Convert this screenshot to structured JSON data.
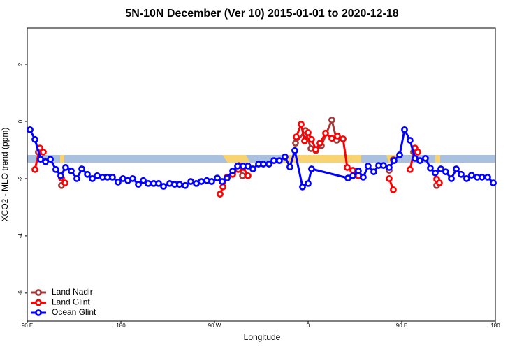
{
  "chart_data": {
    "type": "line",
    "title": "5N-10N December (Ver 10)   2015-01-01 to 2020-12-18",
    "xlabel": "Longitude",
    "ylabel": "XCO2 - MLO trend (ppm)",
    "xlim": [
      90,
      540
    ],
    "ylim": [
      -6.98,
      3.27
    ],
    "xticks": [
      {
        "value": 90,
        "label": "90 E"
      },
      180,
      {
        "value": 270,
        "label": "90 W"
      },
      {
        "value": 360,
        "label": "0"
      },
      {
        "value": 450,
        "label": "90 E"
      },
      {
        "value": 540,
        "label": "180"
      }
    ],
    "yticks": [
      -6,
      -4,
      -2,
      0,
      2
    ],
    "legend": "bottom-left",
    "series": [
      {
        "name": "Land Nadir",
        "color": "#a33a3a",
        "x": [
          100.7,
          null,
          122.9,
          null,
          293.5,
          296.9,
          null,
          347.9,
          357.3,
          362.7,
          367.4,
          372.7,
          382.8,
          387.5,
          null,
          437.9,
          441.9,
          null,
          461.4,
          null,
          483.6
        ],
        "values": [
          -1.07,
          null,
          -2.24,
          null,
          -1.54,
          -1.9,
          null,
          -0.76,
          -0.32,
          -0.95,
          -1.02,
          -0.85,
          0.05,
          -0.66,
          null,
          -1.71,
          -1.34,
          null,
          -1.07,
          null,
          -2.24
        ]
      },
      {
        "name": "Land Glint",
        "color": "#ff0000",
        "x": [
          97.4,
          102.1,
          105.4,
          null,
          122.9,
          126.3,
          null,
          275.4,
          278.1,
          282.1,
          287.5,
          292.8,
          297.5,
          302.2,
          null,
          348.6,
          353.3,
          356.6,
          360.0,
          363.3,
          367.4,
          371.4,
          376.8,
          382.8,
          388.2,
          393.6,
          397.6,
          403.0,
          408.3,
          null,
          437.9,
          441.9,
          null,
          458.0,
          462.7,
          465.4,
          null,
          483.6,
          486.2
        ],
        "values": [
          -1.68,
          -0.93,
          -1.07,
          null,
          -1.98,
          -2.15,
          null,
          -2.54,
          -2.29,
          -1.95,
          -1.85,
          -1.68,
          -1.61,
          -1.9,
          null,
          -0.54,
          -0.1,
          -0.68,
          -0.39,
          -0.63,
          -0.98,
          -0.76,
          -0.41,
          -0.59,
          -0.51,
          -0.61,
          -1.61,
          -1.71,
          -1.9,
          null,
          -2.0,
          -2.39,
          null,
          -1.68,
          -0.93,
          -1.07,
          null,
          -2.02,
          -2.15
        ]
      },
      {
        "name": "Ocean Glint",
        "color": "#0000ff",
        "x": [
          92.7,
          97.4,
          102.8,
          107.5,
          112.2,
          117.5,
          122.2,
          126.9,
          132.3,
          137.7,
          142.4,
          147.8,
          152.5,
          157.2,
          162.5,
          167.2,
          171.9,
          177.3,
          182.0,
          186.7,
          191.4,
          196.8,
          201.5,
          206.2,
          211.6,
          216.3,
          221.0,
          227.0,
          231.7,
          236.4,
          241.8,
          247.2,
          252.5,
          257.2,
          262.6,
          267.3,
          272.7,
          277.4,
          282.1,
          287.5,
          292.2,
          297.5,
          302.2,
          306.9,
          312.3,
          317.0,
          322.4,
          327.1,
          332.4,
          337.8,
          342.5,
          347.2,
          354.6,
          360.0,
          363.3,
          398.3,
          403.0,
          408.3,
          413.0,
          417.7,
          423.1,
          427.8,
          432.5,
          437.9,
          442.6,
          448.0,
          452.7,
          458.0,
          462.7,
          467.4,
          472.8,
          477.5,
          482.2,
          487.6,
          492.3,
          497.7,
          502.4,
          507.1,
          512.4,
          517.1,
          522.5,
          527.2,
          532.6,
          538.0
        ],
        "values": [
          -0.29,
          -0.63,
          -1.32,
          -1.41,
          -1.32,
          -1.68,
          -1.9,
          -1.61,
          -1.73,
          -2.0,
          -1.66,
          -1.85,
          -2.0,
          -1.9,
          -1.95,
          -1.95,
          -1.95,
          -2.12,
          -2.0,
          -2.07,
          -2.0,
          -2.2,
          -2.07,
          -2.17,
          -2.17,
          -2.17,
          -2.27,
          -2.17,
          -2.2,
          -2.2,
          -2.24,
          -2.1,
          -2.17,
          -2.1,
          -2.07,
          -2.1,
          -1.98,
          -2.1,
          -1.98,
          -1.73,
          -1.56,
          -1.56,
          -1.56,
          -1.66,
          -1.49,
          -1.49,
          -1.49,
          -1.37,
          -1.37,
          -1.24,
          -1.59,
          -1.02,
          -2.29,
          -2.17,
          -1.66,
          -1.98,
          -1.9,
          -1.73,
          -1.95,
          -1.56,
          -1.76,
          -1.54,
          -1.54,
          -1.61,
          -1.37,
          -1.17,
          -0.29,
          -0.66,
          -1.29,
          -1.37,
          -1.29,
          -1.63,
          -1.8,
          -1.66,
          -1.76,
          -2.0,
          -1.66,
          -1.85,
          -2.0,
          -1.88,
          -1.95,
          -1.95,
          -1.95,
          -2.15
        ]
      }
    ]
  }
}
